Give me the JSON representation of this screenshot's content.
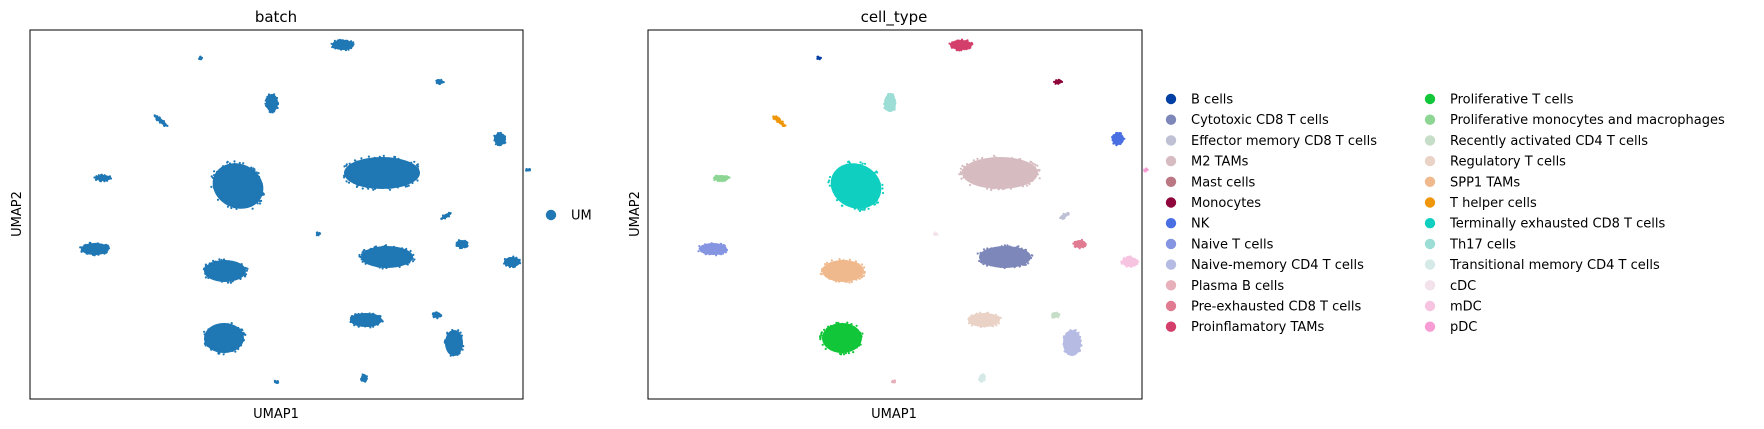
{
  "chart_data": [
    {
      "type": "scatter",
      "title": "batch",
      "xlabel": "UMAP1",
      "ylabel": "UMAP2",
      "legend_position": "right",
      "series": [
        {
          "name": "UM",
          "color": "#1f77b4"
        }
      ],
      "clusters": [
        {
          "x": 313,
          "y": 45,
          "rx": 11,
          "ry": 5,
          "series": 0
        },
        {
          "x": 171,
          "y": 58,
          "rx": 2,
          "ry": 1.5,
          "series": 0
        },
        {
          "x": 242,
          "y": 103,
          "rx": 6,
          "ry": 9,
          "series": 0
        },
        {
          "x": 410,
          "y": 82,
          "rx": 4,
          "ry": 2,
          "series": 0
        },
        {
          "x": 131,
          "y": 121,
          "rx": 8,
          "ry": 2,
          "angle": 40,
          "series": 0
        },
        {
          "x": 470,
          "y": 139,
          "rx": 6,
          "ry": 6,
          "series": 0
        },
        {
          "x": 498,
          "y": 170,
          "rx": 2,
          "ry": 1.5,
          "series": 0
        },
        {
          "x": 73,
          "y": 178,
          "rx": 8,
          "ry": 3,
          "series": 0
        },
        {
          "x": 208,
          "y": 186,
          "rx": 26,
          "ry": 22,
          "angle": 25,
          "series": 0
        },
        {
          "x": 352,
          "y": 173,
          "rx": 38,
          "ry": 16,
          "series": 0
        },
        {
          "x": 416,
          "y": 216,
          "rx": 5,
          "ry": 2,
          "angle": -30,
          "series": 0
        },
        {
          "x": 288,
          "y": 234,
          "rx": 2,
          "ry": 1.5,
          "series": 0
        },
        {
          "x": 65,
          "y": 249,
          "rx": 14,
          "ry": 6,
          "series": 0
        },
        {
          "x": 357,
          "y": 257,
          "rx": 26,
          "ry": 11,
          "series": 0
        },
        {
          "x": 432,
          "y": 244,
          "rx": 6,
          "ry": 4,
          "series": 0
        },
        {
          "x": 482,
          "y": 262,
          "rx": 8,
          "ry": 5,
          "series": 0
        },
        {
          "x": 195,
          "y": 271,
          "rx": 21,
          "ry": 11,
          "series": 0
        },
        {
          "x": 336,
          "y": 320,
          "rx": 16,
          "ry": 7,
          "series": 0
        },
        {
          "x": 407,
          "y": 315,
          "rx": 4,
          "ry": 3,
          "series": 0
        },
        {
          "x": 194,
          "y": 338,
          "rx": 20,
          "ry": 15,
          "series": 0
        },
        {
          "x": 424,
          "y": 343,
          "rx": 9,
          "ry": 13,
          "series": 0
        },
        {
          "x": 246,
          "y": 382,
          "rx": 2,
          "ry": 1.5,
          "series": 0
        },
        {
          "x": 334,
          "y": 378,
          "rx": 3,
          "ry": 4,
          "series": 0
        }
      ]
    },
    {
      "type": "scatter",
      "title": "cell_type",
      "xlabel": "UMAP1",
      "ylabel": "UMAP2",
      "legend_position": "right",
      "series": [
        {
          "name": "B cells",
          "color": "#023fa5"
        },
        {
          "name": "Cytotoxic CD8 T cells",
          "color": "#7d87b9"
        },
        {
          "name": "Effector memory CD8 T cells",
          "color": "#bec1d4"
        },
        {
          "name": "M2 TAMs",
          "color": "#d6bcc0"
        },
        {
          "name": "Mast cells",
          "color": "#bb7784"
        },
        {
          "name": "Monocytes",
          "color": "#8e063b"
        },
        {
          "name": "NK",
          "color": "#4a6fe3"
        },
        {
          "name": "Naive T cells",
          "color": "#8595e1"
        },
        {
          "name": "Naive-memory CD4 T cells",
          "color": "#b5bbe3"
        },
        {
          "name": "Plasma B cells",
          "color": "#e6afb9"
        },
        {
          "name": "Pre-exhausted CD8 T cells",
          "color": "#e07b91"
        },
        {
          "name": "Proinflamatory TAMs",
          "color": "#d33f6a"
        },
        {
          "name": "Proliferative T cells",
          "color": "#11c638"
        },
        {
          "name": "Proliferative monocytes and macrophages",
          "color": "#8dd593"
        },
        {
          "name": "Recently activated CD4 T cells",
          "color": "#c6dec7"
        },
        {
          "name": "Regulatory T cells",
          "color": "#ead3c6"
        },
        {
          "name": "SPP1 TAMs",
          "color": "#f0b98d"
        },
        {
          "name": "T helper cells",
          "color": "#ef9708"
        },
        {
          "name": "Terminally exhausted CD8 T cells",
          "color": "#0fcfc0"
        },
        {
          "name": "Th17 cells",
          "color": "#9cded6"
        },
        {
          "name": "Transitional memory CD4 T cells",
          "color": "#d5eae7"
        },
        {
          "name": "cDC",
          "color": "#f3e1eb"
        },
        {
          "name": "mDC",
          "color": "#f6c4e1"
        },
        {
          "name": "pDC",
          "color": "#f79cd4"
        }
      ],
      "clusters": [
        {
          "x": 313,
          "y": 45,
          "rx": 11,
          "ry": 5,
          "series": 11
        },
        {
          "x": 171,
          "y": 58,
          "rx": 2,
          "ry": 1.5,
          "series": 0
        },
        {
          "x": 242,
          "y": 103,
          "rx": 6,
          "ry": 9,
          "series": 19
        },
        {
          "x": 410,
          "y": 82,
          "rx": 4,
          "ry": 2,
          "series": 5
        },
        {
          "x": 131,
          "y": 121,
          "rx": 8,
          "ry": 2,
          "angle": 40,
          "series": 17
        },
        {
          "x": 470,
          "y": 139,
          "rx": 6,
          "ry": 6,
          "series": 6
        },
        {
          "x": 498,
          "y": 170,
          "rx": 2,
          "ry": 1.5,
          "series": 23
        },
        {
          "x": 73,
          "y": 178,
          "rx": 8,
          "ry": 3,
          "series": 13
        },
        {
          "x": 208,
          "y": 186,
          "rx": 26,
          "ry": 22,
          "angle": 25,
          "series": 18
        },
        {
          "x": 352,
          "y": 173,
          "rx": 38,
          "ry": 16,
          "series": 3
        },
        {
          "x": 416,
          "y": 216,
          "rx": 5,
          "ry": 2,
          "angle": -30,
          "series": 2
        },
        {
          "x": 288,
          "y": 234,
          "rx": 2,
          "ry": 1.5,
          "series": 21
        },
        {
          "x": 65,
          "y": 249,
          "rx": 14,
          "ry": 6,
          "series": 7
        },
        {
          "x": 357,
          "y": 257,
          "rx": 26,
          "ry": 11,
          "series": 1
        },
        {
          "x": 432,
          "y": 244,
          "rx": 6,
          "ry": 4,
          "series": 10
        },
        {
          "x": 482,
          "y": 262,
          "rx": 8,
          "ry": 5,
          "series": 22
        },
        {
          "x": 195,
          "y": 271,
          "rx": 21,
          "ry": 11,
          "series": 16
        },
        {
          "x": 336,
          "y": 320,
          "rx": 16,
          "ry": 7,
          "series": 15
        },
        {
          "x": 407,
          "y": 315,
          "rx": 4,
          "ry": 3,
          "series": 14
        },
        {
          "x": 194,
          "y": 338,
          "rx": 20,
          "ry": 15,
          "series": 12
        },
        {
          "x": 424,
          "y": 343,
          "rx": 9,
          "ry": 13,
          "series": 8
        },
        {
          "x": 246,
          "y": 382,
          "rx": 2,
          "ry": 1.5,
          "series": 9
        },
        {
          "x": 334,
          "y": 378,
          "rx": 3,
          "ry": 4,
          "series": 20
        }
      ]
    }
  ]
}
